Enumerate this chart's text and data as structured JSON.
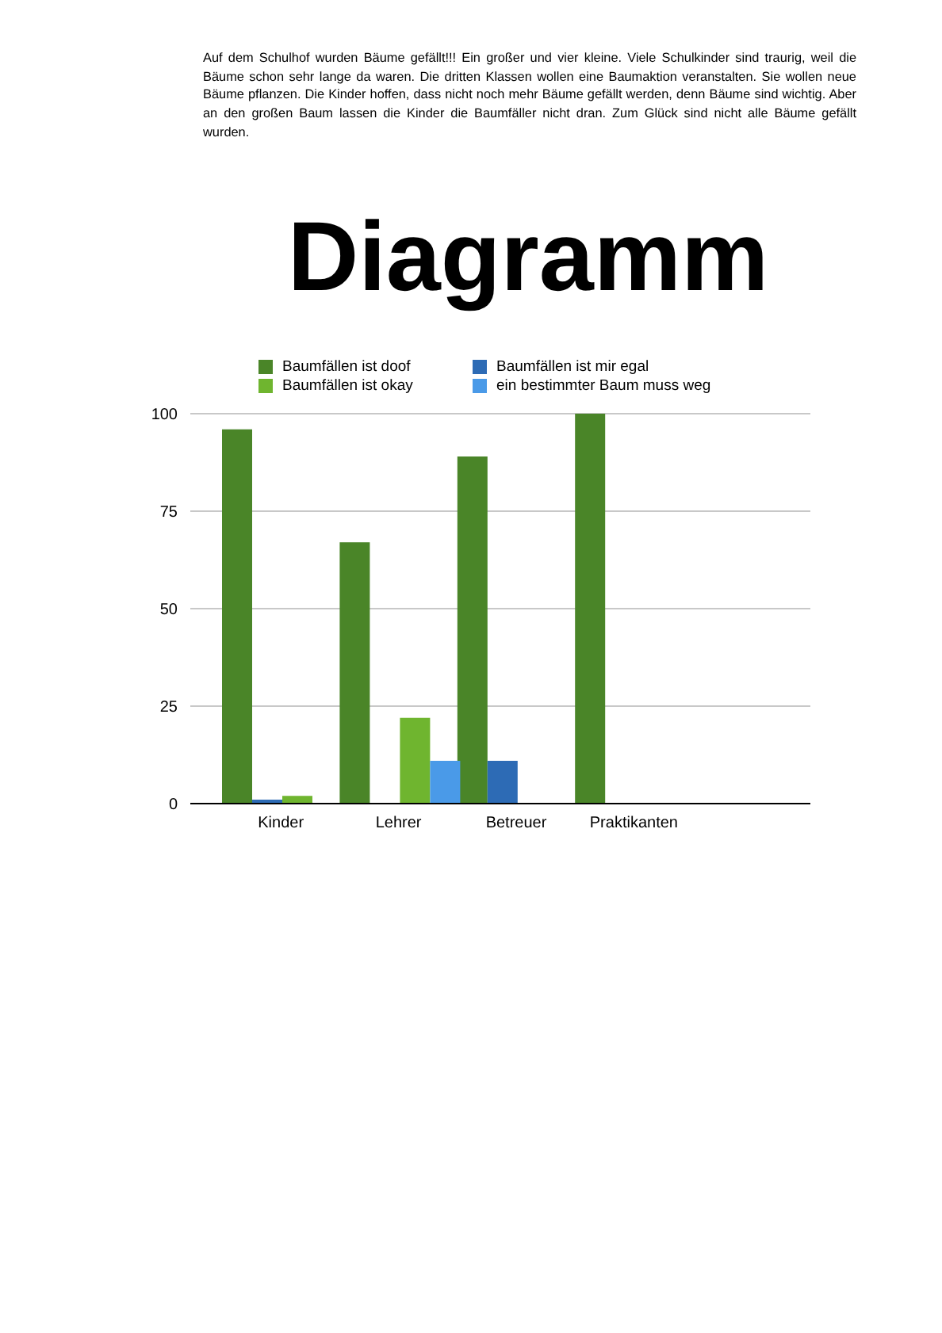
{
  "chart_data": {
    "type": "bar",
    "title": "Diagramm",
    "annotations": [
      "Auf dem Schulhof wurden Bäume gefällt!!! Ein großer und vier kleine. Viele Schulkinder sind traurig, weil die Bäume schon sehr lange da waren. Die dritten Klassen wollen eine Baumaktion veranstalten. Sie wollen neue Bäume pflanzen. Die Kinder hoffen, dass nicht noch mehr Bäume gefällt werden, denn Bäume sind wichtig. Aber an den großen Baum lassen die Kinder die Baumfäller nicht dran. Zum Glück sind nicht alle Bäume gefällt wurden."
    ],
    "categories": [
      "Kinder",
      "Lehrer",
      "Betreuer",
      "Praktikanten",
      null
    ],
    "series": [
      {
        "name": "Baumfällen ist doof",
        "color": "#4a8528",
        "values": [
          96,
          67,
          89,
          100,
          null
        ]
      },
      {
        "name": "Baumfällen ist mir egal",
        "color": "#2d6bb5",
        "values": [
          1,
          0,
          11,
          0,
          null
        ]
      },
      {
        "name": "Baumfällen ist okay",
        "color": "#6fb52f",
        "values": [
          2,
          22,
          0,
          0,
          null
        ]
      },
      {
        "name": "ein bestimmter Baum muss weg",
        "color": "#4a9ae8",
        "values": [
          0,
          11,
          0,
          0,
          null
        ]
      }
    ],
    "ylim": [
      0,
      100
    ],
    "yticks": [
      0,
      25,
      50,
      75,
      100
    ],
    "grid": "y",
    "legend": "top"
  }
}
